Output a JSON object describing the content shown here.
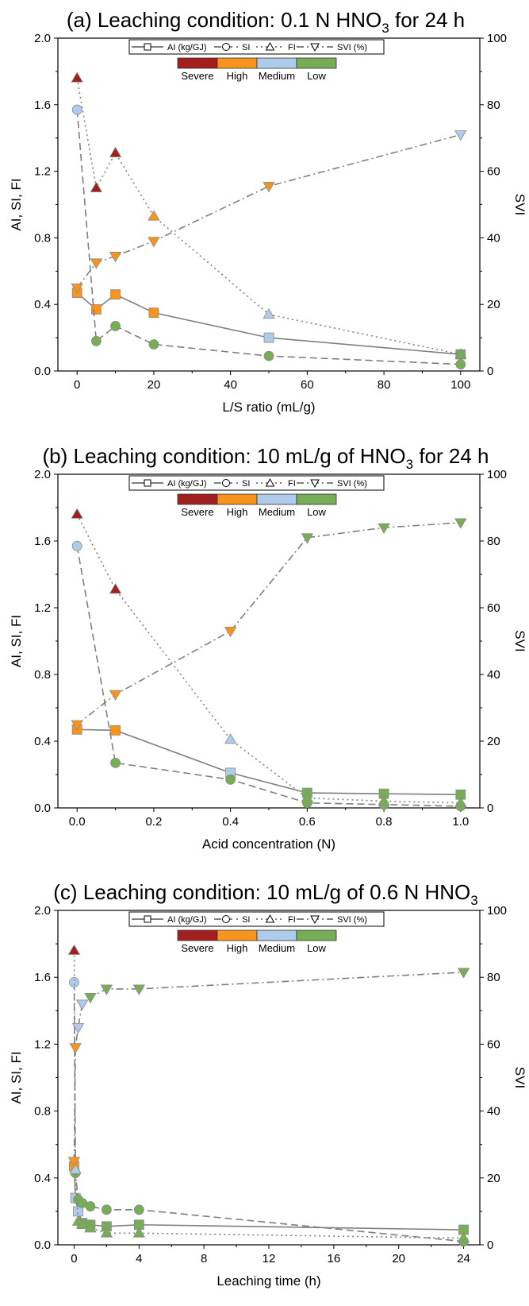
{
  "legend": {
    "series_labels": [
      "AI (kg/GJ)",
      "SI",
      "FI",
      "SVI (%)"
    ],
    "severity_labels": [
      "Severe",
      "High",
      "Medium",
      "Low"
    ],
    "severity_colors": [
      "#a31f1f",
      "#f7941d",
      "#aecbeb",
      "#76ad55"
    ]
  },
  "chart_data": [
    {
      "type": "line",
      "title_main": "(a) Leaching condition: 0.1 N HNO",
      "title_sub": "3",
      "title_tail": " for 24 h",
      "xlabel": "L/S ratio (mL/g)",
      "ylabel_left": "AI, SI, FI",
      "ylabel_right": "SVI",
      "xlim": [
        -5,
        105
      ],
      "xticks": [
        0,
        20,
        40,
        60,
        80,
        100
      ],
      "xtick_labels": [
        "0",
        "20",
        "40",
        "60",
        "80",
        "100"
      ],
      "ylim_left": [
        0,
        2.0
      ],
      "yticks_left": [
        "0.0",
        "0.4",
        "0.8",
        "1.2",
        "1.6",
        "2.0"
      ],
      "ylim_right": [
        0,
        100
      ],
      "yticks_right": [
        "0",
        "20",
        "40",
        "60",
        "80",
        "100"
      ],
      "series": [
        {
          "name": "AI (kg/GJ)",
          "axis": "left",
          "marker": "square",
          "line": "solid",
          "x": [
            0,
            5,
            10,
            20,
            50,
            100
          ],
          "y": [
            0.47,
            0.37,
            0.46,
            0.35,
            0.2,
            0.1
          ],
          "colors": [
            "#f7941d",
            "#f7941d",
            "#f7941d",
            "#f7941d",
            "#aecbeb",
            "#76ad55"
          ]
        },
        {
          "name": "SI",
          "axis": "left",
          "marker": "circle",
          "line": "dash",
          "x": [
            0,
            5,
            10,
            20,
            50,
            100
          ],
          "y": [
            1.57,
            0.18,
            0.27,
            0.16,
            0.09,
            0.04
          ],
          "colors": [
            "#aecbeb",
            "#76ad55",
            "#76ad55",
            "#76ad55",
            "#76ad55",
            "#76ad55"
          ]
        },
        {
          "name": "FI",
          "axis": "left",
          "marker": "triangle-up",
          "line": "dot",
          "x": [
            0,
            5,
            10,
            20,
            50,
            100
          ],
          "y": [
            1.76,
            1.1,
            1.31,
            0.93,
            0.34,
            0.1
          ],
          "colors": [
            "#a31f1f",
            "#a31f1f",
            "#a31f1f",
            "#f7941d",
            "#aecbeb",
            "#76ad55"
          ]
        },
        {
          "name": "SVI (%)",
          "axis": "right",
          "marker": "triangle-down",
          "line": "dashdot",
          "x": [
            0,
            5,
            10,
            20,
            50,
            100
          ],
          "y": [
            25,
            32.5,
            34.5,
            39,
            55.5,
            71
          ],
          "colors": [
            "#f7941d",
            "#f7941d",
            "#f7941d",
            "#f7941d",
            "#f7941d",
            "#aecbeb"
          ]
        }
      ]
    },
    {
      "type": "line",
      "title_main": "(b) Leaching condition: 10 mL/g of HNO",
      "title_sub": "3",
      "title_tail": " for 24 h",
      "xlabel": "Acid concentration (N)",
      "ylabel_left": "AI, SI, FI",
      "ylabel_right": "SVI",
      "xlim": [
        -0.05,
        1.05
      ],
      "xticks": [
        0,
        0.2,
        0.4,
        0.6,
        0.8,
        1.0
      ],
      "xtick_labels": [
        "0.0",
        "0.2",
        "0.4",
        "0.6",
        "0.8",
        "1.0"
      ],
      "ylim_left": [
        0,
        2.0
      ],
      "yticks_left": [
        "0.0",
        "0.4",
        "0.8",
        "1.2",
        "1.6",
        "2.0"
      ],
      "ylim_right": [
        0,
        100
      ],
      "yticks_right": [
        "0",
        "20",
        "40",
        "60",
        "80",
        "100"
      ],
      "series": [
        {
          "name": "AI (kg/GJ)",
          "axis": "left",
          "marker": "square",
          "line": "solid",
          "x": [
            0,
            0.1,
            0.4,
            0.6,
            0.8,
            1.0
          ],
          "y": [
            0.47,
            0.465,
            0.21,
            0.09,
            0.085,
            0.08
          ],
          "colors": [
            "#f7941d",
            "#f7941d",
            "#aecbeb",
            "#76ad55",
            "#76ad55",
            "#76ad55"
          ]
        },
        {
          "name": "SI",
          "axis": "left",
          "marker": "circle",
          "line": "dash",
          "x": [
            0,
            0.1,
            0.4,
            0.6,
            0.8,
            1.0
          ],
          "y": [
            1.57,
            0.27,
            0.17,
            0.03,
            0.02,
            0.01
          ],
          "colors": [
            "#aecbeb",
            "#76ad55",
            "#76ad55",
            "#76ad55",
            "#76ad55",
            "#76ad55"
          ]
        },
        {
          "name": "FI",
          "axis": "left",
          "marker": "triangle-up",
          "line": "dot",
          "x": [
            0,
            0.1,
            0.4,
            0.6,
            0.8,
            1.0
          ],
          "y": [
            1.76,
            1.31,
            0.41,
            0.06,
            0.04,
            0.03
          ],
          "colors": [
            "#a31f1f",
            "#a31f1f",
            "#aecbeb",
            "#76ad55",
            "#76ad55",
            "#76ad55"
          ]
        },
        {
          "name": "SVI (%)",
          "axis": "right",
          "marker": "triangle-down",
          "line": "dashdot",
          "x": [
            0,
            0.1,
            0.4,
            0.6,
            0.8,
            1.0
          ],
          "y": [
            25,
            34,
            53,
            81,
            84,
            85.5
          ],
          "colors": [
            "#f7941d",
            "#f7941d",
            "#f7941d",
            "#76ad55",
            "#76ad55",
            "#76ad55"
          ]
        }
      ]
    },
    {
      "type": "line",
      "title_main": "(c) Leaching condition: 10 mL/g of 0.6 N HNO",
      "title_sub": "3",
      "title_tail": "",
      "xlabel": "Leaching time (h)",
      "ylabel_left": "AI, SI, FI",
      "ylabel_right": "SVI",
      "xlim": [
        -1,
        25
      ],
      "xticks": [
        0,
        4,
        8,
        12,
        16,
        20,
        24
      ],
      "xtick_labels": [
        "0",
        "4",
        "8",
        "12",
        "16",
        "20",
        "24"
      ],
      "ylim_left": [
        0,
        2.0
      ],
      "yticks_left": [
        "0.0",
        "0.4",
        "0.8",
        "1.2",
        "1.6",
        "2.0"
      ],
      "ylim_right": [
        0,
        100
      ],
      "yticks_right": [
        "0",
        "20",
        "40",
        "60",
        "80",
        "100"
      ],
      "series": [
        {
          "name": "AI (kg/GJ)",
          "axis": "left",
          "marker": "square",
          "line": "solid",
          "x": [
            0,
            0.083,
            0.25,
            0.5,
            1,
            2,
            4,
            24
          ],
          "y": [
            0.47,
            0.28,
            0.2,
            0.13,
            0.12,
            0.11,
            0.12,
            0.09
          ],
          "colors": [
            "#f7941d",
            "#aecbeb",
            "#aecbeb",
            "#76ad55",
            "#76ad55",
            "#76ad55",
            "#76ad55",
            "#76ad55"
          ]
        },
        {
          "name": "SI",
          "axis": "left",
          "marker": "circle",
          "line": "dash",
          "x": [
            0,
            0.083,
            0.25,
            0.5,
            1,
            2,
            4,
            24
          ],
          "y": [
            1.57,
            0.43,
            0.27,
            0.25,
            0.23,
            0.21,
            0.21,
            0.02
          ],
          "colors": [
            "#aecbeb",
            "#76ad55",
            "#76ad55",
            "#76ad55",
            "#76ad55",
            "#76ad55",
            "#76ad55",
            "#76ad55"
          ]
        },
        {
          "name": "FI",
          "axis": "left",
          "marker": "triangle-up",
          "line": "dot",
          "x": [
            0,
            0.083,
            0.25,
            0.5,
            1,
            2,
            4,
            24
          ],
          "y": [
            1.76,
            0.45,
            0.14,
            0.12,
            0.1,
            0.07,
            0.07,
            0.04
          ],
          "colors": [
            "#a31f1f",
            "#aecbeb",
            "#76ad55",
            "#76ad55",
            "#76ad55",
            "#76ad55",
            "#76ad55",
            "#76ad55"
          ]
        },
        {
          "name": "SVI (%)",
          "axis": "right",
          "marker": "triangle-down",
          "line": "dashdot",
          "x": [
            0,
            0.083,
            0.25,
            0.5,
            1,
            2,
            4,
            24
          ],
          "y": [
            25,
            59,
            65,
            72,
            74,
            76.5,
            76.5,
            81.5
          ],
          "colors": [
            "#f7941d",
            "#f7941d",
            "#aecbeb",
            "#aecbeb",
            "#76ad55",
            "#76ad55",
            "#76ad55",
            "#76ad55"
          ]
        }
      ]
    }
  ]
}
